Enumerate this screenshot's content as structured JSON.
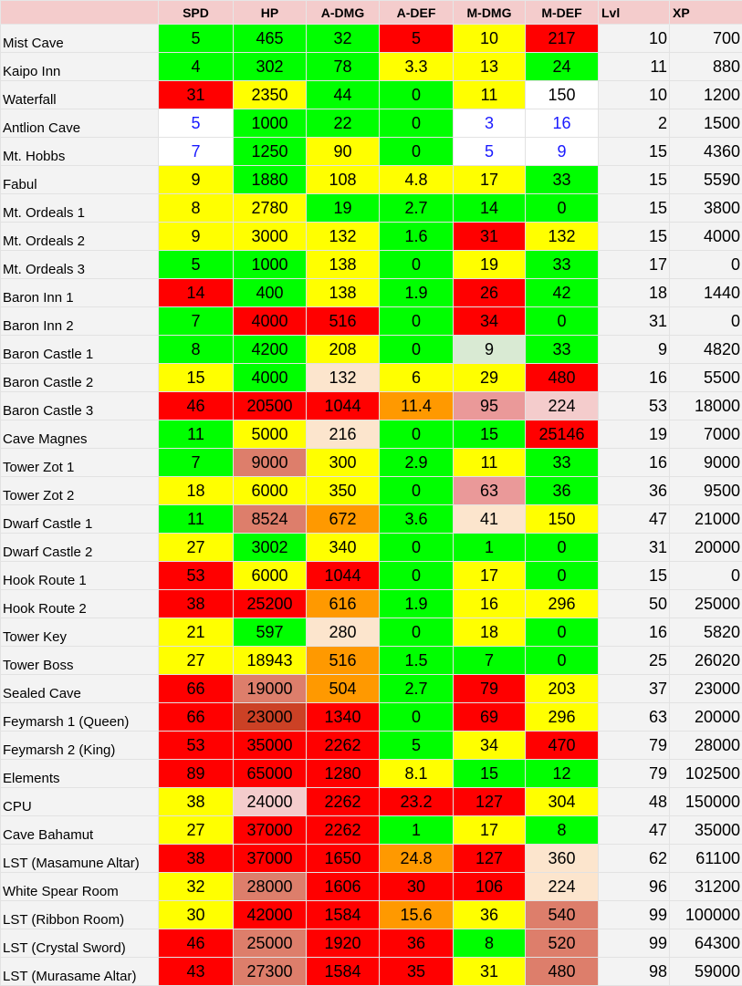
{
  "headers": [
    "",
    "SPD",
    "HP",
    "A-DMG",
    "A-DEF",
    "M-DMG",
    "M-DEF",
    "Lvl",
    "XP"
  ],
  "colors": {
    "header_bg": "#f4cccc",
    "name_bg": "#f3f3f3",
    "G": "#00ff00",
    "Y": "#ffff00",
    "R": "#ff0000",
    "W": "#ffffff",
    "O": "#ff9900",
    "LO": "#fce5cd",
    "LG": "#d9ead3",
    "LP": "#f4cccc",
    "SA": "#dd7e6b",
    "DR": "#cc4125",
    "CR": "#ea9999",
    "blue_text": "#1a1aff"
  },
  "rows": [
    {
      "name": "Mist Cave",
      "cells": [
        [
          "5",
          "G"
        ],
        [
          "465",
          "G"
        ],
        [
          "32",
          "G"
        ],
        [
          "5",
          "R"
        ],
        [
          "10",
          "Y"
        ],
        [
          "217",
          "R"
        ]
      ],
      "lvl": "10",
      "xp": "700"
    },
    {
      "name": "Kaipo Inn",
      "cells": [
        [
          "4",
          "G"
        ],
        [
          "302",
          "G"
        ],
        [
          "78",
          "G"
        ],
        [
          "3.3",
          "Y"
        ],
        [
          "13",
          "Y"
        ],
        [
          "24",
          "G"
        ]
      ],
      "lvl": "11",
      "xp": "880"
    },
    {
      "name": "Waterfall",
      "cells": [
        [
          "31",
          "R"
        ],
        [
          "2350",
          "Y"
        ],
        [
          "44",
          "G"
        ],
        [
          "0",
          "G"
        ],
        [
          "11",
          "Y"
        ],
        [
          "150",
          "W"
        ]
      ],
      "lvl": "10",
      "xp": "1200"
    },
    {
      "name": "Antlion Cave",
      "cells": [
        [
          "5",
          "W",
          "b"
        ],
        [
          "1000",
          "G"
        ],
        [
          "22",
          "G"
        ],
        [
          "0",
          "G"
        ],
        [
          "3",
          "W",
          "b"
        ],
        [
          "16",
          "W",
          "b"
        ]
      ],
      "lvl": "2",
      "xp": "1500"
    },
    {
      "name": "Mt. Hobbs",
      "cells": [
        [
          "7",
          "W",
          "b"
        ],
        [
          "1250",
          "G"
        ],
        [
          "90",
          "Y"
        ],
        [
          "0",
          "G"
        ],
        [
          "5",
          "W",
          "b"
        ],
        [
          "9",
          "W",
          "b"
        ]
      ],
      "lvl": "15",
      "xp": "4360"
    },
    {
      "name": "Fabul",
      "cells": [
        [
          "9",
          "Y"
        ],
        [
          "1880",
          "G"
        ],
        [
          "108",
          "Y"
        ],
        [
          "4.8",
          "Y"
        ],
        [
          "17",
          "Y"
        ],
        [
          "33",
          "G"
        ]
      ],
      "lvl": "15",
      "xp": "5590"
    },
    {
      "name": "Mt. Ordeals 1",
      "cells": [
        [
          "8",
          "Y"
        ],
        [
          "2780",
          "Y"
        ],
        [
          "19",
          "G"
        ],
        [
          "2.7",
          "G"
        ],
        [
          "14",
          "G"
        ],
        [
          "0",
          "G"
        ]
      ],
      "lvl": "15",
      "xp": "3800"
    },
    {
      "name": "Mt. Ordeals 2",
      "cells": [
        [
          "9",
          "Y"
        ],
        [
          "3000",
          "Y"
        ],
        [
          "132",
          "Y"
        ],
        [
          "1.6",
          "G"
        ],
        [
          "31",
          "R"
        ],
        [
          "132",
          "Y"
        ]
      ],
      "lvl": "15",
      "xp": "4000"
    },
    {
      "name": "Mt. Ordeals 3",
      "cells": [
        [
          "5",
          "G"
        ],
        [
          "1000",
          "G"
        ],
        [
          "138",
          "Y"
        ],
        [
          "0",
          "G"
        ],
        [
          "19",
          "Y"
        ],
        [
          "33",
          "G"
        ]
      ],
      "lvl": "17",
      "xp": "0"
    },
    {
      "name": "Baron Inn 1",
      "cells": [
        [
          "14",
          "R"
        ],
        [
          "400",
          "G"
        ],
        [
          "138",
          "Y"
        ],
        [
          "1.9",
          "G"
        ],
        [
          "26",
          "R"
        ],
        [
          "42",
          "G"
        ]
      ],
      "lvl": "18",
      "xp": "1440"
    },
    {
      "name": "Baron Inn 2",
      "cells": [
        [
          "7",
          "G"
        ],
        [
          "4000",
          "R"
        ],
        [
          "516",
          "R"
        ],
        [
          "0",
          "G"
        ],
        [
          "34",
          "R"
        ],
        [
          "0",
          "G"
        ]
      ],
      "lvl": "31",
      "xp": "0"
    },
    {
      "name": "Baron Castle 1",
      "cells": [
        [
          "8",
          "G"
        ],
        [
          "4200",
          "G"
        ],
        [
          "208",
          "Y"
        ],
        [
          "0",
          "G"
        ],
        [
          "9",
          "LG"
        ],
        [
          "33",
          "G"
        ]
      ],
      "lvl": "9",
      "xp": "4820"
    },
    {
      "name": "Baron Castle 2",
      "cells": [
        [
          "15",
          "Y"
        ],
        [
          "4000",
          "G"
        ],
        [
          "132",
          "LO"
        ],
        [
          "6",
          "Y"
        ],
        [
          "29",
          "Y"
        ],
        [
          "480",
          "R"
        ]
      ],
      "lvl": "16",
      "xp": "5500"
    },
    {
      "name": "Baron Castle 3",
      "cells": [
        [
          "46",
          "R"
        ],
        [
          "20500",
          "R"
        ],
        [
          "1044",
          "R"
        ],
        [
          "11.4",
          "O"
        ],
        [
          "95",
          "CR"
        ],
        [
          "224",
          "LP"
        ]
      ],
      "lvl": "53",
      "xp": "18000"
    },
    {
      "name": "Cave Magnes",
      "cells": [
        [
          "11",
          "G"
        ],
        [
          "5000",
          "Y"
        ],
        [
          "216",
          "LO"
        ],
        [
          "0",
          "G"
        ],
        [
          "15",
          "G"
        ],
        [
          "25146",
          "R"
        ]
      ],
      "lvl": "19",
      "xp": "7000"
    },
    {
      "name": "Tower Zot 1",
      "cells": [
        [
          "7",
          "G"
        ],
        [
          "9000",
          "SA"
        ],
        [
          "300",
          "Y"
        ],
        [
          "2.9",
          "G"
        ],
        [
          "11",
          "Y"
        ],
        [
          "33",
          "G"
        ]
      ],
      "lvl": "16",
      "xp": "9000"
    },
    {
      "name": "Tower Zot 2",
      "cells": [
        [
          "18",
          "Y"
        ],
        [
          "6000",
          "Y"
        ],
        [
          "350",
          "Y"
        ],
        [
          "0",
          "G"
        ],
        [
          "63",
          "CR"
        ],
        [
          "36",
          "G"
        ]
      ],
      "lvl": "36",
      "xp": "9500"
    },
    {
      "name": "Dwarf Castle 1",
      "cells": [
        [
          "11",
          "G"
        ],
        [
          "8524",
          "SA"
        ],
        [
          "672",
          "O"
        ],
        [
          "3.6",
          "G"
        ],
        [
          "41",
          "LO"
        ],
        [
          "150",
          "Y"
        ]
      ],
      "lvl": "47",
      "xp": "21000"
    },
    {
      "name": "Dwarf Castle 2",
      "cells": [
        [
          "27",
          "Y"
        ],
        [
          "3002",
          "G"
        ],
        [
          "340",
          "Y"
        ],
        [
          "0",
          "G"
        ],
        [
          "1",
          "G"
        ],
        [
          "0",
          "G"
        ]
      ],
      "lvl": "31",
      "xp": "20000"
    },
    {
      "name": "Hook Route 1",
      "cells": [
        [
          "53",
          "R"
        ],
        [
          "6000",
          "Y"
        ],
        [
          "1044",
          "R"
        ],
        [
          "0",
          "G"
        ],
        [
          "17",
          "Y"
        ],
        [
          "0",
          "G"
        ]
      ],
      "lvl": "15",
      "xp": "0"
    },
    {
      "name": "Hook Route 2",
      "cells": [
        [
          "38",
          "R"
        ],
        [
          "25200",
          "R"
        ],
        [
          "616",
          "O"
        ],
        [
          "1.9",
          "G"
        ],
        [
          "16",
          "Y"
        ],
        [
          "296",
          "Y"
        ]
      ],
      "lvl": "50",
      "xp": "25000"
    },
    {
      "name": "Tower Key",
      "cells": [
        [
          "21",
          "Y"
        ],
        [
          "597",
          "G"
        ],
        [
          "280",
          "LO"
        ],
        [
          "0",
          "G"
        ],
        [
          "18",
          "Y"
        ],
        [
          "0",
          "G"
        ]
      ],
      "lvl": "16",
      "xp": "5820"
    },
    {
      "name": "Tower Boss",
      "cells": [
        [
          "27",
          "Y"
        ],
        [
          "18943",
          "Y"
        ],
        [
          "516",
          "O"
        ],
        [
          "1.5",
          "G"
        ],
        [
          "7",
          "G"
        ],
        [
          "0",
          "G"
        ]
      ],
      "lvl": "25",
      "xp": "26020"
    },
    {
      "name": "Sealed Cave",
      "cells": [
        [
          "66",
          "R"
        ],
        [
          "19000",
          "SA"
        ],
        [
          "504",
          "O"
        ],
        [
          "2.7",
          "G"
        ],
        [
          "79",
          "R"
        ],
        [
          "203",
          "Y"
        ]
      ],
      "lvl": "37",
      "xp": "23000"
    },
    {
      "name": "Feymarsh 1 (Queen)",
      "cells": [
        [
          "66",
          "R"
        ],
        [
          "23000",
          "DR"
        ],
        [
          "1340",
          "R"
        ],
        [
          "0",
          "G"
        ],
        [
          "69",
          "R"
        ],
        [
          "296",
          "Y"
        ]
      ],
      "lvl": "63",
      "xp": "20000"
    },
    {
      "name": "Feymarsh 2 (King)",
      "cells": [
        [
          "53",
          "R"
        ],
        [
          "35000",
          "R"
        ],
        [
          "2262",
          "R"
        ],
        [
          "5",
          "G"
        ],
        [
          "34",
          "Y"
        ],
        [
          "470",
          "R"
        ]
      ],
      "lvl": "79",
      "xp": "28000"
    },
    {
      "name": "Elements",
      "cells": [
        [
          "89",
          "R"
        ],
        [
          "65000",
          "R"
        ],
        [
          "1280",
          "R"
        ],
        [
          "8.1",
          "Y"
        ],
        [
          "15",
          "G"
        ],
        [
          "12",
          "G"
        ]
      ],
      "lvl": "79",
      "xp": "102500"
    },
    {
      "name": "CPU",
      "cells": [
        [
          "38",
          "Y"
        ],
        [
          "24000",
          "LP"
        ],
        [
          "2262",
          "R"
        ],
        [
          "23.2",
          "R"
        ],
        [
          "127",
          "R"
        ],
        [
          "304",
          "Y"
        ]
      ],
      "lvl": "48",
      "xp": "150000"
    },
    {
      "name": "Cave Bahamut",
      "cells": [
        [
          "27",
          "Y"
        ],
        [
          "37000",
          "R"
        ],
        [
          "2262",
          "R"
        ],
        [
          "1",
          "G"
        ],
        [
          "17",
          "Y"
        ],
        [
          "8",
          "G"
        ]
      ],
      "lvl": "47",
      "xp": "35000"
    },
    {
      "name": "LST (Masamune Altar)",
      "cells": [
        [
          "38",
          "R"
        ],
        [
          "37000",
          "R"
        ],
        [
          "1650",
          "R"
        ],
        [
          "24.8",
          "O"
        ],
        [
          "127",
          "R"
        ],
        [
          "360",
          "LO"
        ]
      ],
      "lvl": "62",
      "xp": "61100"
    },
    {
      "name": "White Spear Room",
      "cells": [
        [
          "32",
          "Y"
        ],
        [
          "28000",
          "SA"
        ],
        [
          "1606",
          "R"
        ],
        [
          "30",
          "R"
        ],
        [
          "106",
          "R"
        ],
        [
          "224",
          "LO"
        ]
      ],
      "lvl": "96",
      "xp": "31200"
    },
    {
      "name": "LST (Ribbon Room)",
      "cells": [
        [
          "30",
          "Y"
        ],
        [
          "42000",
          "R"
        ],
        [
          "1584",
          "R"
        ],
        [
          "15.6",
          "O"
        ],
        [
          "36",
          "Y"
        ],
        [
          "540",
          "SA"
        ]
      ],
      "lvl": "99",
      "xp": "100000"
    },
    {
      "name": "LST (Crystal Sword)",
      "cells": [
        [
          "46",
          "R"
        ],
        [
          "25000",
          "SA"
        ],
        [
          "1920",
          "R"
        ],
        [
          "36",
          "R"
        ],
        [
          "8",
          "G"
        ],
        [
          "520",
          "SA"
        ]
      ],
      "lvl": "99",
      "xp": "64300"
    },
    {
      "name": "LST (Murasame Altar)",
      "cells": [
        [
          "43",
          "R"
        ],
        [
          "27300",
          "SA"
        ],
        [
          "1584",
          "R"
        ],
        [
          "35",
          "R"
        ],
        [
          "31",
          "Y"
        ],
        [
          "480",
          "SA"
        ]
      ],
      "lvl": "98",
      "xp": "59000"
    }
  ]
}
